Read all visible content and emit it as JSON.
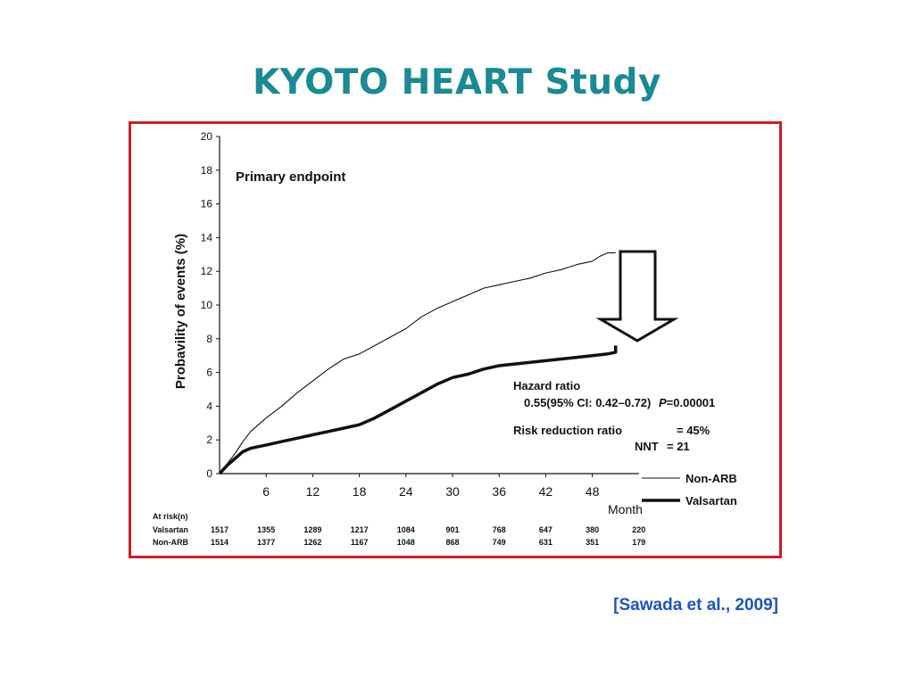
{
  "slide": {
    "title": "KYOTO HEART Study",
    "citation": "[Sawada et al., 2009]",
    "frame_color": "#cc1f1f",
    "title_color": "#1a8a94",
    "citation_color": "#1a55c4"
  },
  "chart_data": {
    "type": "line",
    "title": "Primary  endpoint",
    "xlabel": "Month",
    "ylabel": "Probavility of events (%)",
    "xlim": [
      0,
      54
    ],
    "ylim": [
      0,
      20
    ],
    "x_ticks": [
      6,
      12,
      18,
      24,
      30,
      36,
      42,
      48
    ],
    "y_ticks": [
      0,
      2,
      4,
      6,
      8,
      10,
      12,
      14,
      16,
      18,
      20
    ],
    "grid": false,
    "legend_position": "bottom-right",
    "series": [
      {
        "name": "Non-ARB",
        "style": "thin",
        "x": [
          0,
          1,
          2,
          3,
          4,
          6,
          8,
          10,
          12,
          14,
          16,
          18,
          20,
          22,
          24,
          26,
          28,
          30,
          32,
          34,
          36,
          38,
          40,
          42,
          44,
          46,
          48,
          49,
          50,
          51
        ],
        "y": [
          0,
          0.6,
          1.2,
          1.9,
          2.5,
          3.3,
          4.0,
          4.8,
          5.5,
          6.2,
          6.8,
          7.1,
          7.6,
          8.1,
          8.6,
          9.3,
          9.8,
          10.2,
          10.6,
          11.0,
          11.2,
          11.4,
          11.6,
          11.9,
          12.1,
          12.4,
          12.6,
          12.9,
          13.1,
          13.1
        ]
      },
      {
        "name": "Valsartan",
        "style": "thick",
        "x": [
          0,
          1,
          2,
          3,
          4,
          6,
          8,
          10,
          12,
          14,
          16,
          18,
          20,
          22,
          24,
          26,
          28,
          30,
          32,
          34,
          36,
          38,
          40,
          42,
          44,
          46,
          48,
          50,
          51,
          51
        ],
        "y": [
          0,
          0.5,
          0.9,
          1.3,
          1.5,
          1.7,
          1.9,
          2.1,
          2.3,
          2.5,
          2.7,
          2.9,
          3.3,
          3.8,
          4.3,
          4.8,
          5.3,
          5.7,
          5.9,
          6.2,
          6.4,
          6.5,
          6.6,
          6.7,
          6.8,
          6.9,
          7.0,
          7.1,
          7.2,
          7.6
        ]
      }
    ],
    "annotations": {
      "hazard_title": "Hazard ratio",
      "hazard_value": "0.55(95% CI: 0.42–0.72)",
      "p_label": "P",
      "p_value": "=0.00001",
      "rrr_label": "Risk reduction ratio",
      "rrr_value": "=  45%",
      "nnt_label": "NNT",
      "nnt_value": "=  21"
    },
    "at_risk": {
      "header": "At risk(n)",
      "rows": [
        {
          "label": "Valsartan",
          "values": [
            1517,
            1355,
            1289,
            1217,
            1084,
            901,
            768,
            647,
            380,
            220
          ]
        },
        {
          "label": "Non-ARB",
          "values": [
            1514,
            1377,
            1262,
            1167,
            1048,
            868,
            749,
            631,
            351,
            179
          ]
        }
      ]
    }
  }
}
